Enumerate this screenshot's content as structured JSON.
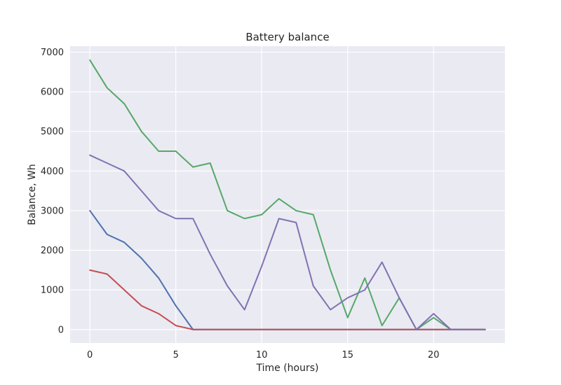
{
  "chart_data": {
    "type": "line",
    "title": "Battery balance",
    "xlabel": "Time (hours)",
    "ylabel": "Balance, Wh",
    "xlim": [
      -1.15,
      24.15
    ],
    "ylim": [
      -340,
      7150
    ],
    "xticks": [
      0,
      5,
      10,
      15,
      20
    ],
    "yticks": [
      0,
      1000,
      2000,
      3000,
      4000,
      5000,
      6000,
      7000
    ],
    "grid": true,
    "legend": "none",
    "background_color": "#EAEAF2",
    "x": [
      0,
      1,
      2,
      3,
      4,
      5,
      6,
      7,
      8,
      9,
      10,
      11,
      12,
      13,
      14,
      15,
      16,
      17,
      18,
      19,
      20,
      21,
      22,
      23
    ],
    "series": [
      {
        "color": "#4C72B0",
        "values": [
          3000,
          2400,
          2200,
          1800,
          1300,
          600,
          0,
          0,
          0,
          0,
          0,
          0,
          0,
          0,
          0,
          0,
          0,
          0,
          0,
          0,
          0,
          0,
          0,
          0
        ]
      },
      {
        "color": "#55A868",
        "values": [
          6800,
          6100,
          5700,
          5000,
          4500,
          4500,
          4100,
          4200,
          3000,
          2800,
          2900,
          3300,
          3000,
          2900,
          1500,
          300,
          1300,
          100,
          800,
          0,
          300,
          0,
          0,
          0
        ]
      },
      {
        "color": "#C44E52",
        "values": [
          1500,
          1400,
          1000,
          600,
          400,
          100,
          0,
          0,
          0,
          0,
          0,
          0,
          0,
          0,
          0,
          0,
          0,
          0,
          0,
          0,
          0,
          0,
          0,
          0
        ]
      },
      {
        "color": "#8172B2",
        "values": [
          4400,
          4200,
          4000,
          3500,
          3000,
          2800,
          2800,
          1900,
          1100,
          500,
          1600,
          2800,
          2700,
          1100,
          500,
          800,
          1000,
          1700,
          800,
          0,
          400,
          0,
          0,
          0
        ]
      }
    ]
  }
}
